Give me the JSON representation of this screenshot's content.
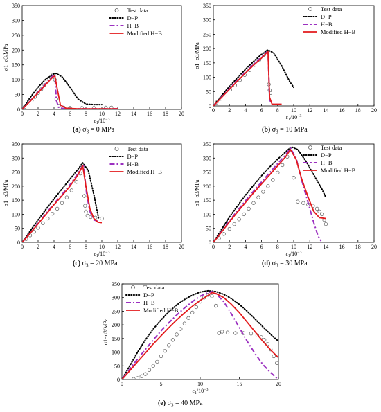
{
  "chart_data": [
    {
      "type": "line",
      "panel_label": "(a)",
      "caption_prefix": "σ",
      "caption_subscript": "3",
      "caption_value": " = 0 MPa",
      "xlabel_prefix": "ε",
      "xlabel_subscript": "1",
      "xlabel_suffix": "/10",
      "xlabel_exponent": "−3",
      "ylabel": "σ1−σ3/MPa",
      "xlim": [
        0,
        20
      ],
      "ylim": [
        0,
        350
      ],
      "x_ticks": [
        0,
        2,
        4,
        6,
        8,
        10,
        12,
        14,
        16,
        18,
        20
      ],
      "y_ticks": [
        0,
        50,
        100,
        150,
        200,
        250,
        300,
        350
      ],
      "legend_position": "top-right",
      "series": [
        {
          "name": "Test data",
          "style": "circles",
          "color": "#555555",
          "x": [
            0.3,
            0.8,
            1.2,
            1.6,
            2.0,
            2.4,
            2.8,
            3.2,
            3.6,
            3.9,
            4.1,
            4.3,
            4.6,
            5.2,
            6.0,
            7.5,
            9.0,
            10.5,
            11.2
          ],
          "y": [
            8,
            20,
            30,
            42,
            55,
            68,
            82,
            95,
            108,
            117,
            100,
            35,
            12,
            6,
            5,
            5,
            5,
            6,
            6
          ]
        },
        {
          "name": "D−P",
          "style": "dotted",
          "color": "#000000",
          "x": [
            0,
            1,
            2,
            3,
            4,
            4.3,
            5,
            6,
            7,
            8,
            9,
            10
          ],
          "y": [
            0,
            40,
            75,
            103,
            120,
            121,
            110,
            75,
            35,
            18,
            16,
            16
          ]
        },
        {
          "name": "H−B",
          "style": "dashdot",
          "color": "#9b30c0",
          "x": [
            0,
            1,
            2,
            3,
            3.8,
            4.1,
            4.3,
            4.6,
            5.5,
            7,
            9,
            12
          ],
          "y": [
            0,
            28,
            58,
            88,
            112,
            116,
            30,
            5,
            2,
            2,
            2,
            2
          ]
        },
        {
          "name": "Modified H−B",
          "style": "solid",
          "color": "#e31a1c",
          "x": [
            0,
            1,
            2,
            3,
            3.8,
            4.1,
            4.4,
            4.8,
            5.5,
            7,
            9,
            12
          ],
          "y": [
            0,
            27,
            56,
            85,
            108,
            113,
            70,
            15,
            4,
            2,
            2,
            2
          ]
        }
      ]
    },
    {
      "type": "line",
      "panel_label": "(b)",
      "caption_prefix": "σ",
      "caption_subscript": "3",
      "caption_value": " = 10 MPa",
      "xlabel_prefix": "ε",
      "xlabel_subscript": "1",
      "xlabel_suffix": "/10",
      "xlabel_exponent": "−3",
      "ylabel": "σ1−σ3/MPa",
      "xlim": [
        0,
        20
      ],
      "ylim": [
        0,
        350
      ],
      "x_ticks": [
        0,
        2,
        4,
        6,
        8,
        10,
        12,
        14,
        16,
        18,
        20
      ],
      "y_ticks": [
        0,
        50,
        100,
        150,
        200,
        250,
        300,
        350
      ],
      "legend_position": "top-right",
      "series": [
        {
          "name": "Test data",
          "style": "circles",
          "color": "#555555",
          "x": [
            0.4,
            0.9,
            1.5,
            2.1,
            2.7,
            3.3,
            3.9,
            4.5,
            5.1,
            5.7,
            6.3,
            6.7,
            6.9,
            7.0,
            7.1
          ],
          "y": [
            12,
            25,
            40,
            57,
            72,
            90,
            108,
            125,
            143,
            160,
            178,
            190,
            75,
            55,
            45
          ]
        },
        {
          "name": "D−P",
          "style": "dotted",
          "color": "#000000",
          "x": [
            0,
            1,
            2,
            3,
            4,
            5,
            6,
            6.8,
            7.5,
            8.5,
            9.5,
            10
          ],
          "y": [
            0,
            35,
            68,
            98,
            128,
            155,
            180,
            195,
            185,
            140,
            85,
            65
          ]
        },
        {
          "name": "H−B",
          "style": "dashdot",
          "color": "#9b30c0",
          "x": [
            0,
            1,
            2,
            3,
            4,
            5,
            6,
            6.8,
            7.0,
            7.4,
            8.5
          ],
          "y": [
            0,
            30,
            60,
            90,
            118,
            145,
            170,
            192,
            20,
            5,
            5
          ]
        },
        {
          "name": "Modified H−B",
          "style": "solid",
          "color": "#e31a1c",
          "x": [
            0,
            1,
            2,
            3,
            4,
            5,
            6,
            6.8,
            7.0,
            7.3,
            8.5
          ],
          "y": [
            0,
            29,
            58,
            87,
            115,
            142,
            167,
            190,
            30,
            6,
            6
          ]
        }
      ]
    },
    {
      "type": "line",
      "panel_label": "(c)",
      "caption_prefix": "σ",
      "caption_subscript": "3",
      "caption_value": " = 20 MPa",
      "xlabel_prefix": "ε",
      "xlabel_subscript": "1",
      "xlabel_suffix": "/10",
      "xlabel_exponent": "−3",
      "ylabel": "σ1−σ3/MPa",
      "xlim": [
        0,
        20
      ],
      "ylim": [
        0,
        350
      ],
      "x_ticks": [
        0,
        2,
        4,
        6,
        8,
        10,
        12,
        14,
        16,
        18,
        20
      ],
      "y_ticks": [
        0,
        50,
        100,
        150,
        200,
        250,
        300,
        350
      ],
      "legend_position": "top-right",
      "series": [
        {
          "name": "Test data",
          "style": "circles",
          "color": "#555555",
          "x": [
            0.5,
            1.0,
            1.5,
            2.0,
            2.6,
            3.2,
            3.8,
            4.4,
            5.0,
            5.6,
            6.2,
            6.8,
            7.3,
            7.6,
            7.8,
            7.9,
            8.0,
            8.2,
            8.6,
            9.2,
            10.0
          ],
          "y": [
            12,
            25,
            38,
            52,
            68,
            85,
            102,
            120,
            140,
            160,
            185,
            215,
            245,
            270,
            165,
            130,
            110,
            95,
            90,
            88,
            85
          ]
        },
        {
          "name": "D−P",
          "style": "dotted",
          "color": "#000000",
          "x": [
            0,
            1,
            2,
            3,
            4,
            5,
            6,
            7,
            7.6,
            8.3,
            9.0,
            9.6
          ],
          "y": [
            0,
            40,
            80,
            118,
            155,
            190,
            225,
            260,
            283,
            255,
            170,
            85
          ]
        },
        {
          "name": "H−B",
          "style": "dashdot",
          "color": "#9b30c0",
          "x": [
            0,
            1,
            2,
            3,
            4,
            5,
            6,
            7,
            7.7,
            8.1,
            8.5,
            9.0,
            9.5
          ],
          "y": [
            0,
            33,
            68,
            103,
            138,
            170,
            205,
            245,
            278,
            170,
            110,
            80,
            75
          ]
        },
        {
          "name": "Modified H−B",
          "style": "solid",
          "color": "#e31a1c",
          "x": [
            0,
            1,
            2,
            3,
            4,
            5,
            6,
            7,
            7.6,
            8.0,
            8.5,
            9.0,
            9.5,
            10.0
          ],
          "y": [
            0,
            32,
            66,
            100,
            134,
            166,
            200,
            240,
            272,
            200,
            120,
            85,
            72,
            70
          ]
        }
      ]
    },
    {
      "type": "line",
      "panel_label": "(d)",
      "caption_prefix": "σ",
      "caption_subscript": "3",
      "caption_value": " = 30 MPa",
      "xlabel_prefix": "ε",
      "xlabel_subscript": "1",
      "xlabel_suffix": "/10",
      "xlabel_exponent": "−3",
      "ylabel": "σ1−σ3/MPa",
      "xlim": [
        0,
        20
      ],
      "ylim": [
        0,
        350
      ],
      "x_ticks": [
        0,
        2,
        4,
        6,
        8,
        10,
        12,
        14,
        16,
        18,
        20
      ],
      "y_ticks": [
        0,
        50,
        100,
        150,
        200,
        250,
        300,
        350
      ],
      "legend_position": "top-right",
      "series": [
        {
          "name": "Test data",
          "style": "circles",
          "color": "#555555",
          "x": [
            0.7,
            1.3,
            2.0,
            2.6,
            3.2,
            3.8,
            4.4,
            5.0,
            5.6,
            6.2,
            6.8,
            7.4,
            8.0,
            8.6,
            9.2,
            9.6,
            10.0,
            10.5,
            11.2,
            11.8,
            12.4,
            12.9,
            13.2,
            13.5,
            13.8,
            14.0
          ],
          "y": [
            15,
            30,
            48,
            65,
            82,
            100,
            120,
            140,
            160,
            180,
            200,
            222,
            248,
            275,
            305,
            330,
            230,
            145,
            140,
            135,
            130,
            120,
            110,
            100,
            80,
            65
          ]
        },
        {
          "name": "D−P",
          "style": "dotted",
          "color": "#000000",
          "x": [
            0,
            1,
            2,
            3,
            4,
            5,
            6,
            7,
            8,
            9,
            9.7,
            10.5,
            11.5,
            12.5,
            13.5,
            14.0
          ],
          "y": [
            0,
            45,
            90,
            130,
            168,
            203,
            237,
            268,
            296,
            322,
            340,
            330,
            290,
            240,
            190,
            160
          ]
        },
        {
          "name": "H−B",
          "style": "dashdot",
          "color": "#9b30c0",
          "x": [
            0,
            1,
            2,
            3,
            4,
            5,
            6,
            7,
            8,
            9,
            9.6,
            10.3,
            11.0,
            11.8,
            12.5,
            13.0,
            13.4
          ],
          "y": [
            0,
            38,
            77,
            113,
            148,
            182,
            215,
            248,
            280,
            312,
            335,
            300,
            220,
            140,
            70,
            25,
            5
          ]
        },
        {
          "name": "Modified H−B",
          "style": "solid",
          "color": "#e31a1c",
          "x": [
            0,
            1,
            2,
            3,
            4,
            5,
            6,
            7,
            8,
            9,
            9.6,
            10.3,
            11.0,
            11.8,
            12.5,
            13.2,
            14.0
          ],
          "y": [
            0,
            36,
            73,
            108,
            142,
            176,
            208,
            240,
            272,
            305,
            330,
            295,
            225,
            160,
            110,
            88,
            85
          ]
        }
      ]
    },
    {
      "type": "line",
      "panel_label": "(e)",
      "caption_prefix": "σ",
      "caption_subscript": "3",
      "caption_value": " = 40 MPa",
      "xlabel_prefix": "ε",
      "xlabel_subscript": "1",
      "xlabel_suffix": "/10",
      "xlabel_exponent": "−3",
      "ylabel": "σ1−σ3/MPa",
      "xlim": [
        0,
        20
      ],
      "ylim": [
        0,
        350
      ],
      "x_ticks": [
        0,
        5,
        10,
        15,
        20
      ],
      "y_ticks": [
        0,
        50,
        100,
        150,
        200,
        250,
        300,
        350
      ],
      "legend_position": "top-left",
      "series": [
        {
          "name": "Test data",
          "style": "circles",
          "color": "#555555",
          "x": [
            1.5,
            2.0,
            2.5,
            3.0,
            3.5,
            4.0,
            4.5,
            5.0,
            5.5,
            6.0,
            6.5,
            7.0,
            7.5,
            8.0,
            8.5,
            9.0,
            9.5,
            10.0,
            10.5,
            11.0,
            11.5,
            12.0,
            12.4,
            12.8,
            13.5,
            14.5,
            15.5,
            16.5,
            17.3,
            17.8,
            18.2,
            18.6,
            19.0,
            19.4,
            19.8
          ],
          "y": [
            2,
            5,
            12,
            20,
            35,
            50,
            65,
            85,
            105,
            125,
            145,
            165,
            185,
            205,
            225,
            245,
            265,
            285,
            300,
            310,
            305,
            270,
            170,
            175,
            172,
            170,
            170,
            168,
            162,
            155,
            145,
            130,
            110,
            85,
            60
          ]
        },
        {
          "name": "D−P",
          "style": "dotted",
          "color": "#000000",
          "x": [
            0,
            1,
            2,
            3,
            4,
            5,
            6,
            7,
            8,
            9,
            10,
            11,
            12,
            13,
            14,
            15,
            16,
            17,
            18,
            19,
            20
          ],
          "y": [
            0,
            50,
            100,
            145,
            185,
            218,
            248,
            273,
            293,
            309,
            320,
            325,
            322,
            312,
            296,
            275,
            250,
            222,
            193,
            165,
            140
          ]
        },
        {
          "name": "H−B",
          "style": "dashdot",
          "color": "#9b30c0",
          "x": [
            0,
            1,
            2,
            3,
            4,
            5,
            6,
            7,
            8,
            9,
            10,
            11,
            11.5,
            12,
            13,
            14,
            15,
            16,
            17,
            18,
            19,
            19.8
          ],
          "y": [
            0,
            38,
            75,
            110,
            145,
            178,
            208,
            236,
            262,
            285,
            305,
            318,
            322,
            315,
            285,
            240,
            190,
            140,
            95,
            55,
            25,
            5
          ]
        },
        {
          "name": "Modified H−B",
          "style": "solid",
          "color": "#e31a1c",
          "x": [
            0,
            1,
            2,
            3,
            4,
            5,
            6,
            7,
            8,
            9,
            10,
            11,
            11.5,
            12,
            13,
            14,
            15,
            16,
            17,
            18,
            19,
            20
          ],
          "y": [
            0,
            32,
            65,
            97,
            130,
            160,
            190,
            218,
            244,
            268,
            290,
            308,
            318,
            315,
            300,
            275,
            245,
            210,
            175,
            140,
            108,
            80
          ]
        }
      ]
    }
  ]
}
